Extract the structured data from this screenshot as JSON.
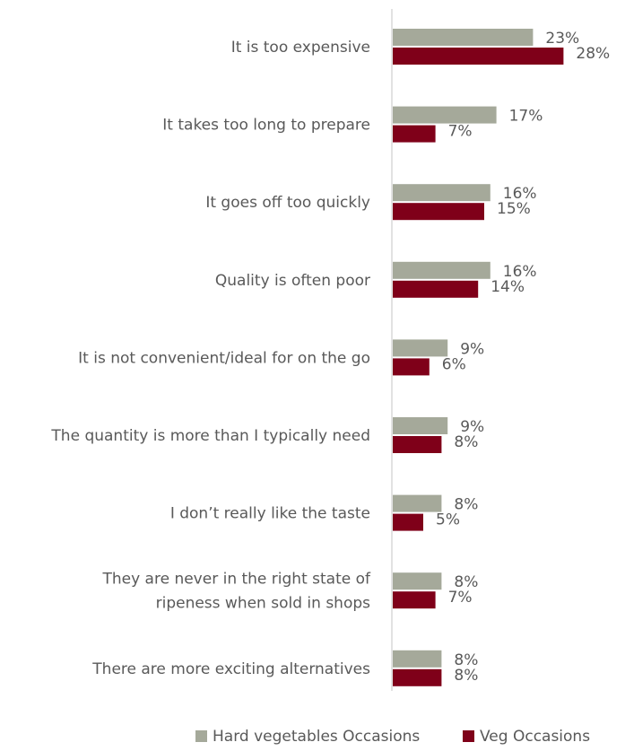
{
  "chart_data": {
    "type": "bar",
    "orientation": "horizontal",
    "categories": [
      [
        "It is too expensive"
      ],
      [
        "It takes too long to prepare"
      ],
      [
        "It goes off too quickly"
      ],
      [
        "Quality is often poor"
      ],
      [
        "It is not convenient/ideal for on the go"
      ],
      [
        "The quantity is more than I typically need"
      ],
      [
        "I don’t really like the taste"
      ],
      [
        "They are never in the right state of",
        "ripeness when sold in shops"
      ],
      [
        "There are more exciting alternatives"
      ]
    ],
    "series": [
      {
        "name": "Hard vegetables Occasions",
        "color": "#a5a99a",
        "values": [
          23,
          17,
          16,
          16,
          9,
          9,
          8,
          8,
          8
        ],
        "labels": [
          "23%",
          "17%",
          "16%",
          "16%",
          "9%",
          "9%",
          "8%",
          "8%",
          "8%"
        ]
      },
      {
        "name": "Veg Occasions",
        "color": "#7f0019",
        "values": [
          28,
          7,
          15,
          14,
          6,
          8,
          5,
          7,
          8
        ],
        "labels": [
          "28%",
          "7%",
          "15%",
          "14%",
          "6%",
          "8%",
          "5%",
          "7%",
          "8%"
        ]
      }
    ],
    "xlim": [
      0,
      40
    ],
    "grid": false,
    "axis_color": "#d9d9d9",
    "legend_position": "bottom-right"
  }
}
